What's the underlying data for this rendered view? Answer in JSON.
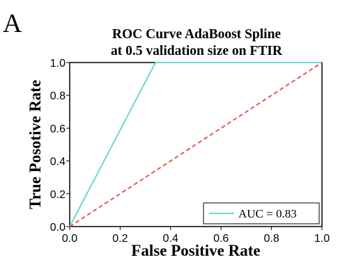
{
  "panel_letter": "A",
  "chart_data": {
    "type": "line",
    "title_lines": [
      "ROC Curve AdaBoost Spline",
      "at 0.5 validation size on FTIR"
    ],
    "xlabel": "False Positive Rate",
    "ylabel": "True Posotive Rate",
    "xlim": [
      0,
      1
    ],
    "ylim": [
      0,
      1
    ],
    "x_ticks": [
      0.0,
      0.2,
      0.4,
      0.6,
      0.8,
      1.0
    ],
    "x_tick_labels": [
      "0.0",
      "0.2",
      "0.4",
      "0.6",
      "0.8",
      "1.0"
    ],
    "y_ticks": [
      0.0,
      0.2,
      0.4,
      0.6,
      0.8,
      1.0
    ],
    "y_tick_labels": [
      "0.0",
      "0.2",
      "0.4",
      "0.6",
      "0.8",
      "1.0"
    ],
    "grid": false,
    "legend_position": "bottom-right",
    "series": [
      {
        "name": "AUC = 0.83",
        "color": "#6fd6cf",
        "style": "solid",
        "x": [
          0.0,
          0.34,
          1.0
        ],
        "y": [
          0.0,
          1.0,
          1.0
        ]
      },
      {
        "color": "#e8554f",
        "style": "dashed",
        "x": [
          0.0,
          1.0
        ],
        "y": [
          0.0,
          1.0
        ]
      }
    ]
  }
}
